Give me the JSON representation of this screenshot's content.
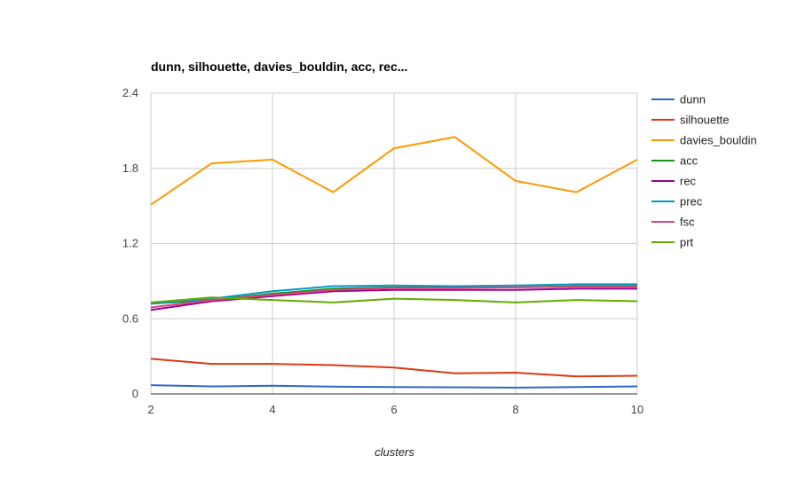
{
  "chart_data": {
    "type": "line",
    "title": "dunn, silhouette, davies_bouldin, acc, rec...",
    "xlabel": "clusters",
    "ylabel": "",
    "x": [
      2,
      3,
      4,
      5,
      6,
      7,
      8,
      9,
      10
    ],
    "xticks": [
      "2",
      "4",
      "6",
      "8",
      "10"
    ],
    "xlim": [
      2,
      10
    ],
    "ylim": [
      0,
      2.4
    ],
    "yticks": [
      "0",
      "0.6",
      "1.2",
      "1.8",
      "2.4"
    ],
    "grid": true,
    "legend_position": "right",
    "series": [
      {
        "name": "dunn",
        "color": "#3366cc",
        "values": [
          0.07,
          0.06,
          0.065,
          0.058,
          0.055,
          0.053,
          0.05,
          0.055,
          0.06
        ]
      },
      {
        "name": "silhouette",
        "color": "#dc3912",
        "values": [
          0.28,
          0.24,
          0.24,
          0.23,
          0.21,
          0.165,
          0.17,
          0.14,
          0.145
        ]
      },
      {
        "name": "davies_bouldin",
        "color": "#ff9900",
        "values": [
          1.51,
          1.84,
          1.87,
          1.61,
          1.96,
          2.05,
          1.7,
          1.61,
          1.87
        ]
      },
      {
        "name": "acc",
        "color": "#109618",
        "values": [
          0.72,
          0.75,
          0.8,
          0.84,
          0.85,
          0.85,
          0.85,
          0.86,
          0.86
        ]
      },
      {
        "name": "rec",
        "color": "#990099",
        "values": [
          0.67,
          0.74,
          0.78,
          0.82,
          0.83,
          0.83,
          0.83,
          0.84,
          0.84
        ]
      },
      {
        "name": "prec",
        "color": "#0099c6",
        "values": [
          0.72,
          0.76,
          0.82,
          0.86,
          0.865,
          0.86,
          0.865,
          0.875,
          0.875
        ]
      },
      {
        "name": "fsc",
        "color": "#dd4477",
        "values": [
          0.69,
          0.75,
          0.79,
          0.83,
          0.845,
          0.845,
          0.85,
          0.855,
          0.855
        ]
      },
      {
        "name": "prt",
        "color": "#66aa00",
        "values": [
          0.73,
          0.77,
          0.75,
          0.73,
          0.76,
          0.75,
          0.73,
          0.75,
          0.74
        ]
      }
    ]
  }
}
